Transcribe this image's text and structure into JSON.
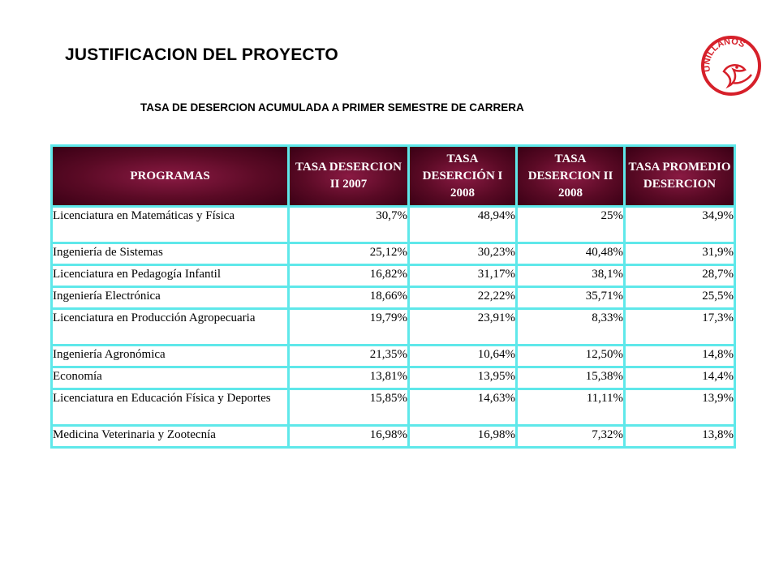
{
  "header": {
    "title": "JUSTIFICACION  DEL PROYECTO",
    "subtitle": "TASA DE DESERCION ACUMULADA A PRIMER SEMESTRE DE CARRERA",
    "logo_text": "UNILLANOS"
  },
  "table": {
    "columns": [
      "PROGRAMAS",
      "TASA DESERCION II 2007",
      "TASA DESERCIÓN I 2008",
      "TASA DESERCION II 2008",
      "TASA PROMEDIO DESERCION"
    ],
    "rows": [
      {
        "programa": "Licenciatura en Matemáticas y Física",
        "ii_2007": "30,7%",
        "i_2008": "48,94%",
        "ii_2008": "25%",
        "promedio": "34,9%"
      },
      {
        "programa": "Ingeniería de Sistemas",
        "ii_2007": "25,12%",
        "i_2008": "30,23%",
        "ii_2008": "40,48%",
        "promedio": "31,9%"
      },
      {
        "programa": "Licenciatura en Pedagogía Infantil",
        "ii_2007": "16,82%",
        "i_2008": "31,17%",
        "ii_2008": "38,1%",
        "promedio": "28,7%"
      },
      {
        "programa": "Ingeniería Electrónica",
        "ii_2007": "18,66%",
        "i_2008": "22,22%",
        "ii_2008": "35,71%",
        "promedio": "25,5%"
      },
      {
        "programa": "Licenciatura en Producción Agropecuaria",
        "ii_2007": "19,79%",
        "i_2008": "23,91%",
        "ii_2008": "8,33%",
        "promedio": "17,3%"
      },
      {
        "programa": "Ingeniería Agronómica",
        "ii_2007": "21,35%",
        "i_2008": "10,64%",
        "ii_2008": "12,50%",
        "promedio": "14,8%"
      },
      {
        "programa": "Economía",
        "ii_2007": "13,81%",
        "i_2008": "13,95%",
        "ii_2008": "15,38%",
        "promedio": "14,4%"
      },
      {
        "programa": "Licenciatura en Educación Física y Deportes",
        "ii_2007": "15,85%",
        "i_2008": "14,63%",
        "ii_2008": "11,11%",
        "promedio": "13,9%"
      },
      {
        "programa": "Medicina Veterinaria y Zootecnía",
        "ii_2007": "16,98%",
        "i_2008": "16,98%",
        "ii_2008": "7,32%",
        "promedio": "13,8%"
      }
    ]
  },
  "colors": {
    "header_bg": "#5a0a25",
    "grid": "#5fe8ea",
    "logo": "#d6202a"
  }
}
